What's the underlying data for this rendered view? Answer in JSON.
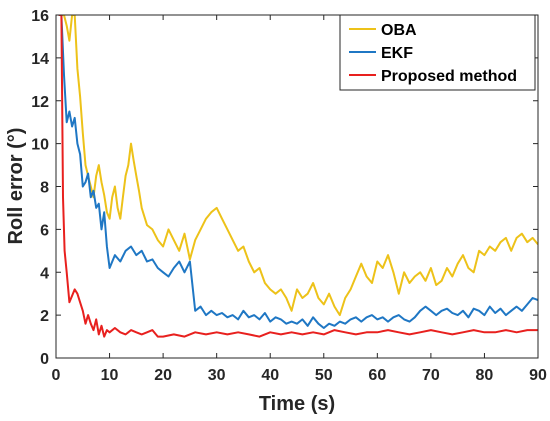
{
  "chart_data": {
    "type": "line",
    "title": "",
    "xlabel": "Time (s)",
    "ylabel": "Roll error (°)",
    "xlim": [
      0,
      90
    ],
    "ylim": [
      0,
      16
    ],
    "xticks": [
      0,
      10,
      20,
      30,
      40,
      50,
      60,
      70,
      80,
      90
    ],
    "yticks": [
      0,
      2,
      4,
      6,
      8,
      10,
      12,
      14,
      16
    ],
    "grid": false,
    "legend_position": "top-right",
    "series": [
      {
        "name": "OBA",
        "color": "#EDC219",
        "x": [
          0.5,
          1,
          1.5,
          2,
          2.5,
          3,
          3.5,
          4,
          4.5,
          5,
          5.5,
          6,
          6.5,
          7,
          7.5,
          8,
          8.5,
          9,
          9.5,
          10,
          10.5,
          11,
          11.5,
          12,
          12.5,
          13,
          13.5,
          14,
          14.5,
          15,
          15.5,
          16,
          17,
          18,
          19,
          20,
          21,
          22,
          23,
          24,
          25,
          26,
          27,
          28,
          29,
          30,
          31,
          32,
          33,
          34,
          35,
          36,
          37,
          38,
          39,
          40,
          41,
          42,
          43,
          44,
          45,
          46,
          47,
          48,
          49,
          50,
          51,
          52,
          53,
          54,
          55,
          56,
          57,
          58,
          59,
          60,
          61,
          62,
          63,
          64,
          65,
          66,
          67,
          68,
          69,
          70,
          71,
          72,
          73,
          74,
          75,
          76,
          77,
          78,
          79,
          80,
          81,
          82,
          83,
          84,
          85,
          86,
          87,
          88,
          89,
          90
        ],
        "y": [
          16,
          16,
          16,
          15.5,
          14.8,
          16,
          16,
          13.5,
          12.2,
          10.5,
          9.0,
          8.5,
          8.0,
          7.5,
          8.5,
          9.0,
          8.2,
          7.6,
          6.8,
          6.5,
          7.5,
          8.0,
          7.0,
          6.5,
          7.5,
          8.5,
          9.0,
          10.0,
          9.2,
          8.5,
          7.8,
          7.0,
          6.2,
          6.0,
          5.5,
          5.2,
          6.0,
          5.5,
          5.0,
          5.8,
          4.6,
          5.5,
          6.0,
          6.5,
          6.8,
          7.0,
          6.5,
          6.0,
          5.5,
          5.0,
          5.2,
          4.5,
          4.0,
          4.2,
          3.5,
          3.2,
          3.0,
          3.2,
          2.8,
          2.2,
          3.2,
          2.8,
          3.0,
          3.5,
          2.8,
          2.5,
          3.0,
          2.4,
          2.0,
          2.8,
          3.2,
          3.8,
          4.4,
          3.8,
          3.5,
          4.5,
          4.2,
          4.8,
          4.0,
          3.0,
          4.0,
          3.5,
          3.8,
          4.0,
          3.6,
          4.2,
          3.4,
          3.6,
          4.2,
          3.8,
          4.4,
          4.8,
          4.2,
          4.0,
          5.0,
          4.8,
          5.2,
          5.0,
          5.4,
          5.6,
          5.0,
          5.6,
          5.8,
          5.4,
          5.6,
          5.3
        ]
      },
      {
        "name": "EKF",
        "color": "#1F77C4",
        "x": [
          0.5,
          1,
          1.5,
          2,
          2.5,
          3,
          3.5,
          4,
          4.5,
          5,
          5.5,
          6,
          6.5,
          7,
          7.5,
          8,
          8.5,
          9,
          9.5,
          10,
          11,
          12,
          13,
          14,
          15,
          16,
          17,
          18,
          19,
          20,
          21,
          22,
          23,
          24,
          25,
          26,
          27,
          28,
          29,
          30,
          31,
          32,
          33,
          34,
          35,
          36,
          37,
          38,
          39,
          40,
          41,
          42,
          43,
          44,
          45,
          46,
          47,
          48,
          49,
          50,
          51,
          52,
          53,
          54,
          55,
          56,
          57,
          58,
          59,
          60,
          61,
          62,
          63,
          64,
          65,
          66,
          67,
          68,
          69,
          70,
          71,
          72,
          73,
          74,
          75,
          76,
          77,
          78,
          79,
          80,
          81,
          82,
          83,
          84,
          85,
          86,
          87,
          88,
          89,
          90
        ],
        "y": [
          16,
          16,
          13.2,
          11.0,
          11.5,
          10.8,
          11.2,
          10.0,
          9.5,
          8.0,
          8.2,
          8.6,
          7.5,
          7.8,
          7.0,
          7.2,
          6.0,
          6.8,
          5.2,
          4.2,
          4.8,
          4.5,
          5.0,
          5.2,
          4.8,
          5.0,
          4.5,
          4.6,
          4.2,
          4.0,
          3.8,
          4.2,
          4.5,
          4.0,
          4.5,
          2.2,
          2.4,
          2.0,
          2.2,
          2.0,
          2.1,
          1.9,
          2.0,
          1.8,
          2.2,
          1.9,
          2.0,
          1.8,
          2.1,
          1.7,
          1.9,
          1.8,
          1.6,
          1.7,
          1.6,
          1.8,
          1.5,
          1.9,
          1.6,
          1.4,
          1.6,
          1.5,
          1.7,
          1.6,
          1.8,
          1.9,
          1.7,
          1.9,
          2.0,
          1.8,
          1.9,
          1.7,
          1.9,
          2.0,
          1.8,
          1.7,
          1.9,
          2.2,
          2.4,
          2.2,
          2.0,
          2.2,
          2.3,
          2.1,
          2.0,
          2.2,
          1.9,
          2.3,
          2.2,
          2.0,
          2.4,
          2.1,
          2.3,
          2.0,
          2.2,
          2.4,
          2.2,
          2.5,
          2.8,
          2.7
        ]
      },
      {
        "name": "Proposed method",
        "color": "#E8201E",
        "x": [
          0.5,
          1,
          1.3,
          1.6,
          2,
          2.5,
          3,
          3.5,
          4,
          4.5,
          5,
          5.5,
          6,
          6.5,
          7,
          7.5,
          8,
          8.5,
          9,
          9.5,
          10,
          11,
          12,
          13,
          14,
          15,
          16,
          17,
          18,
          19,
          20,
          22,
          24,
          26,
          28,
          30,
          32,
          34,
          36,
          38,
          40,
          42,
          44,
          46,
          48,
          50,
          52,
          54,
          56,
          58,
          60,
          62,
          64,
          66,
          68,
          70,
          72,
          74,
          76,
          78,
          80,
          82,
          84,
          86,
          88,
          90
        ],
        "y": [
          16,
          16,
          7.5,
          5.0,
          4.0,
          2.6,
          2.9,
          3.2,
          3.0,
          2.6,
          2.2,
          1.6,
          2.0,
          1.6,
          1.3,
          1.8,
          1.1,
          1.5,
          1.0,
          1.3,
          1.2,
          1.4,
          1.2,
          1.1,
          1.3,
          1.2,
          1.1,
          1.2,
          1.3,
          1.0,
          1.0,
          1.1,
          1.0,
          1.2,
          1.1,
          1.2,
          1.1,
          1.2,
          1.1,
          1.0,
          1.2,
          1.1,
          1.2,
          1.1,
          1.2,
          1.1,
          1.3,
          1.2,
          1.1,
          1.2,
          1.2,
          1.3,
          1.2,
          1.1,
          1.2,
          1.3,
          1.2,
          1.1,
          1.2,
          1.3,
          1.2,
          1.2,
          1.3,
          1.2,
          1.3,
          1.3
        ]
      }
    ]
  }
}
